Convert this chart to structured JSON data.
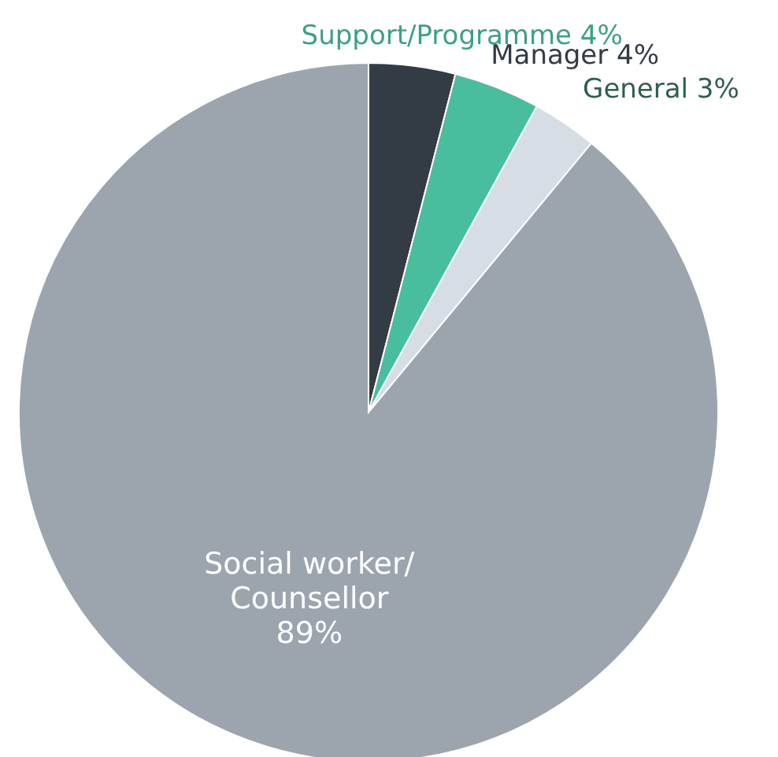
{
  "chart_data": {
    "type": "pie",
    "categories": [
      "Support/Programme",
      "Manager",
      "General",
      "Social worker/ Counsellor"
    ],
    "values": [
      4,
      4,
      3,
      89
    ],
    "colors": [
      "#333b45",
      "#48be9e",
      "#d6dde4",
      "#9ca5ae"
    ],
    "value_labels": [
      "4%",
      "4%",
      "3%",
      "89%"
    ]
  }
}
